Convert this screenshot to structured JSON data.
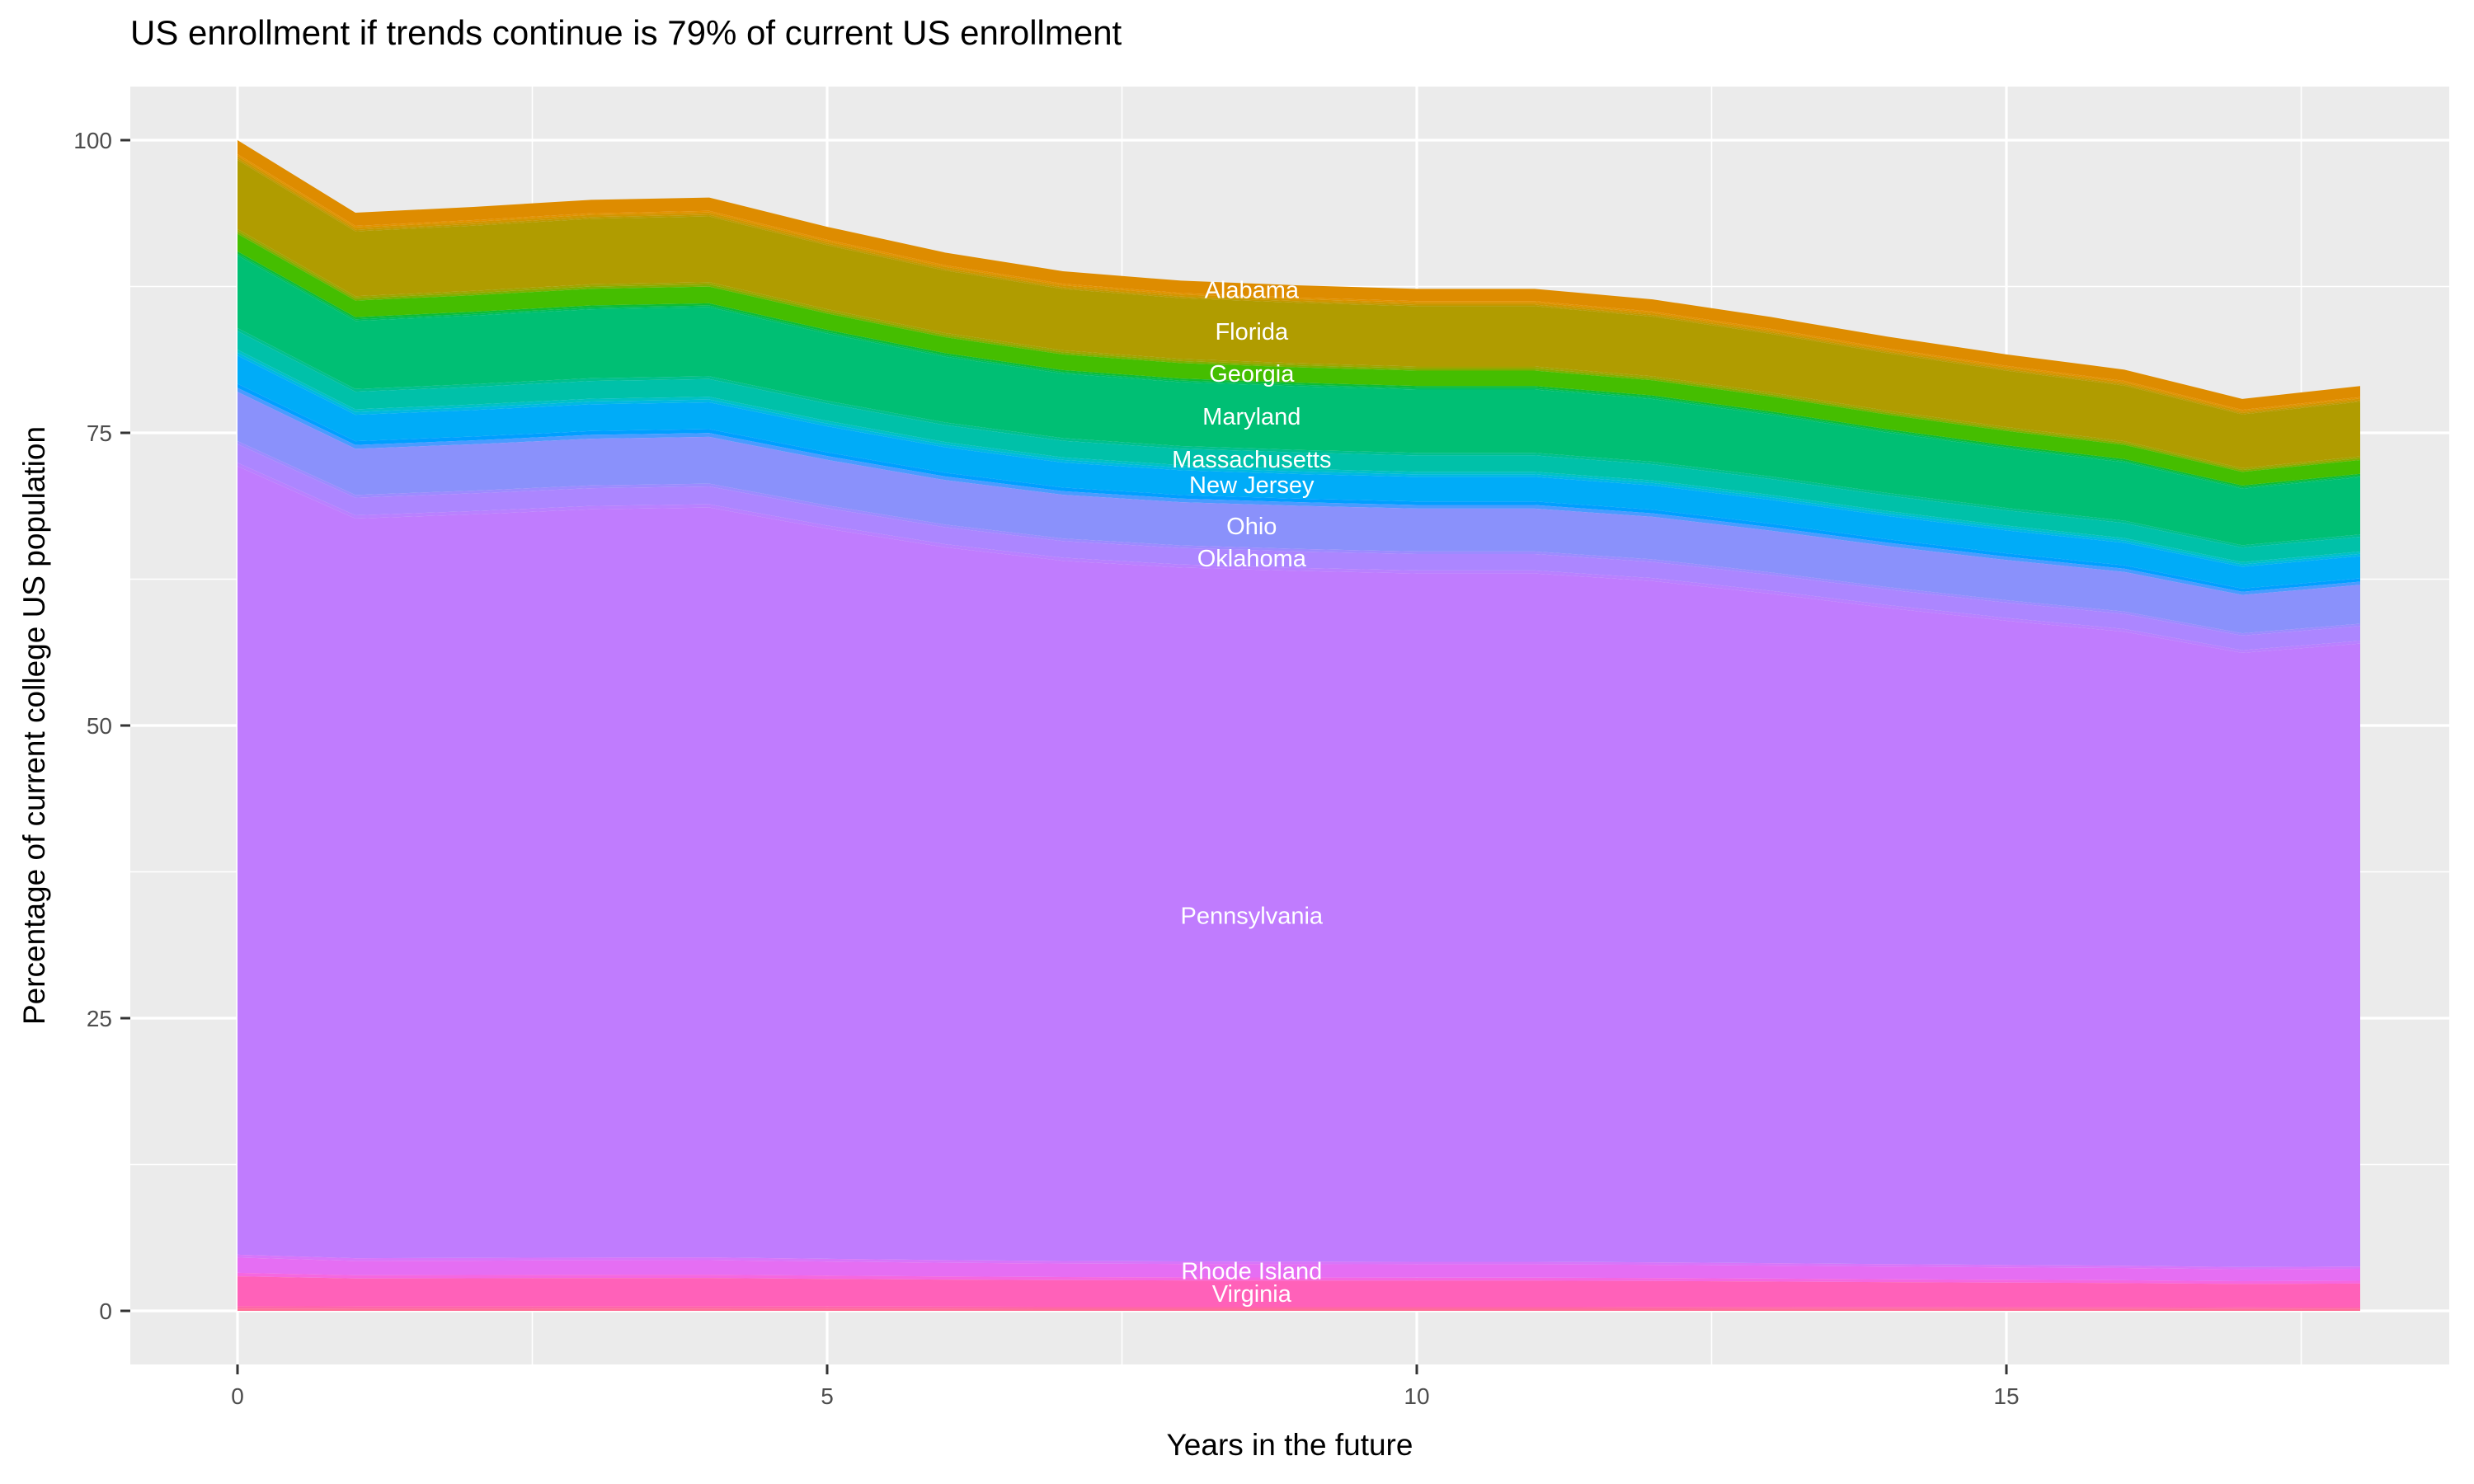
{
  "chart_data": {
    "type": "area",
    "variant": "stacked-area-proportions",
    "title": "US enrollment if trends continue is 79% of current US enrollment",
    "xlabel": "Years in the future",
    "ylabel": "Percentage of current college US population",
    "x": [
      0,
      1,
      2,
      3,
      4,
      5,
      6,
      7,
      8,
      9,
      10,
      11,
      12,
      13,
      14,
      15,
      16,
      17,
      18
    ],
    "totals": [
      100,
      93.8,
      94.3,
      94.9,
      95.1,
      92.6,
      90.4,
      88.8,
      88.0,
      87.6,
      87.3,
      87.3,
      86.4,
      84.9,
      83.2,
      81.7,
      80.4,
      77.9,
      79.0
    ],
    "values_formula": "series value at year t = share_pct/100 * totals[t]; stack is drawn top-to-bottom in listed order",
    "stack_order": "top-to-bottom",
    "final_total_pct": 79,
    "label_x_year": 8.6,
    "axes": {
      "x": {
        "ticks": [
          0,
          5,
          10,
          15
        ],
        "minor": [
          2.5,
          7.5,
          12.5,
          17.5
        ],
        "lim": [
          -0.9,
          18.9
        ]
      },
      "y": {
        "ticks": [
          0,
          25,
          50,
          75,
          100
        ],
        "minor": [
          12.5,
          37.5,
          62.5,
          87.5
        ],
        "lim": [
          -4.6,
          104.6
        ]
      }
    },
    "style": {
      "panel_bg": "#EBEBEB",
      "grid_color": "#FFFFFF",
      "tick_mark_color": "#333333",
      "tick_label_color": "#4D4D4D",
      "band_label_color": "#FFFFFF",
      "title_color": "#000000"
    },
    "legend_position": "none (direct white labels on bands)",
    "series": [
      {
        "name": "Alabama",
        "color": "#DE8C00",
        "share_pct": 1.2,
        "labeled": true
      },
      {
        "name": "unlabeled-sliver",
        "color": "#E39200",
        "share_pct": 0.15,
        "labeled": false
      },
      {
        "name": "unlabeled-sliver",
        "color": "#D29500",
        "share_pct": 0.2,
        "labeled": false
      },
      {
        "name": "unlabeled-sliver",
        "color": "#C09900",
        "share_pct": 0.15,
        "labeled": false
      },
      {
        "name": "Florida",
        "color": "#B09C00",
        "share_pct": 5.9,
        "labeled": true
      },
      {
        "name": "unlabeled-sliver",
        "color": "#9FA500",
        "share_pct": 0.2,
        "labeled": false
      },
      {
        "name": "unlabeled-sliver",
        "color": "#7FAF00",
        "share_pct": 0.2,
        "labeled": false
      },
      {
        "name": "Georgia",
        "color": "#45BE00",
        "share_pct": 1.5,
        "labeled": true
      },
      {
        "name": "unlabeled-sliver",
        "color": "#0DBD35",
        "share_pct": 0.2,
        "labeled": false
      },
      {
        "name": "unlabeled-sliver",
        "color": "#00BD5C",
        "share_pct": 0.15,
        "labeled": false
      },
      {
        "name": "Maryland",
        "color": "#00BF74",
        "share_pct": 6.2,
        "labeled": true
      },
      {
        "name": "unlabeled-sliver",
        "color": "#00C08F",
        "share_pct": 0.25,
        "labeled": false
      },
      {
        "name": "Massachusetts",
        "color": "#00C1A9",
        "share_pct": 1.6,
        "labeled": true
      },
      {
        "name": "unlabeled-sliver",
        "color": "#00C1C6",
        "share_pct": 0.25,
        "labeled": false
      },
      {
        "name": "unlabeled-sliver",
        "color": "#00B9E2",
        "share_pct": 0.25,
        "labeled": false
      },
      {
        "name": "New Jersey",
        "color": "#00ACF8",
        "share_pct": 2.4,
        "labeled": true
      },
      {
        "name": "unlabeled-sliver",
        "color": "#009FFF",
        "share_pct": 0.35,
        "labeled": false
      },
      {
        "name": "unlabeled-sliver",
        "color": "#4A9BFF",
        "share_pct": 0.35,
        "labeled": false
      },
      {
        "name": "Ohio",
        "color": "#8A91FB",
        "share_pct": 4.2,
        "labeled": true
      },
      {
        "name": "unlabeled-sliver",
        "color": "#9D8BFF",
        "share_pct": 0.25,
        "labeled": false
      },
      {
        "name": "Oklahoma",
        "color": "#AC86FF",
        "share_pct": 1.6,
        "labeled": true
      },
      {
        "name": "unlabeled-sliver",
        "color": "#B981FF",
        "share_pct": 0.3,
        "labeled": false
      },
      {
        "name": "Pennsylvania",
        "color": "#C07CFE",
        "share_pct": 67.35,
        "labeled": true
      },
      {
        "name": "unlabeled-sliver",
        "color": "#D875FA",
        "share_pct": 0.25,
        "labeled": false
      },
      {
        "name": "Rhode Island",
        "color": "#E56EF3",
        "share_pct": 1.3,
        "labeled": true
      },
      {
        "name": "unlabeled-sliver",
        "color": "#F667E0",
        "share_pct": 0.3,
        "labeled": false
      },
      {
        "name": "Virginia",
        "color": "#FF61B9",
        "share_pct": 2.55,
        "labeled": true
      },
      {
        "name": "unlabeled-sliver",
        "color": "#FF66A8",
        "share_pct": 0.2,
        "labeled": false
      },
      {
        "name": "unlabeled-sliver",
        "color": "#FF6F96",
        "share_pct": 0.2,
        "labeled": false
      }
    ]
  }
}
